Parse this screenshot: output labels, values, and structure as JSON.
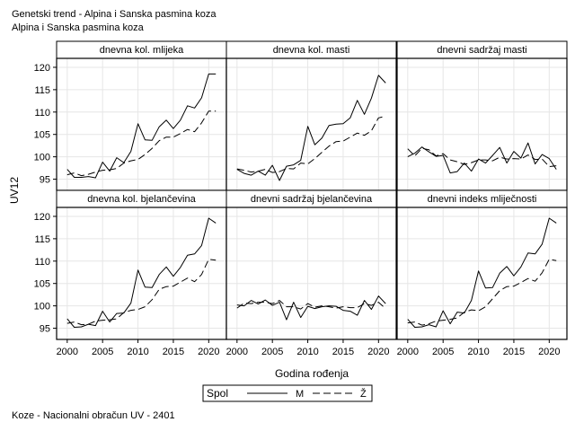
{
  "header": {
    "title": "Genetski trend - Alpina i Sanska pasmina koza",
    "subtitle": "Alpina i Sanska pasmina koza"
  },
  "footer": {
    "text": "Koze - Nacionalni obračun UV - 2401"
  },
  "legend": {
    "title": "Spol",
    "items": [
      {
        "label": "M",
        "style": "solid"
      },
      {
        "label": "Ž",
        "style": "dashed"
      }
    ]
  },
  "chart_data": {
    "type": "line",
    "xlabel": "Godina rođenja",
    "ylabel": "UV12",
    "xlim": [
      1998.5,
      2022.5
    ],
    "ylim": [
      92.5,
      122
    ],
    "xticks": [
      2000,
      2005,
      2010,
      2015,
      2020
    ],
    "yticks": [
      95,
      100,
      105,
      110,
      115,
      120
    ],
    "grid": true,
    "legend_position": "bottom",
    "x": [
      2000,
      2001,
      2002,
      2003,
      2004,
      2005,
      2006,
      2007,
      2008,
      2009,
      2010,
      2011,
      2012,
      2013,
      2014,
      2015,
      2016,
      2017,
      2018,
      2019,
      2020,
      2021
    ],
    "panels": [
      {
        "title": "dnevna kol. mlijeka",
        "series": [
          {
            "name": "M",
            "values": [
              97.2,
              95.4,
              95.4,
              95.6,
              95.3,
              98.8,
              96.8,
              99.8,
              98.7,
              101.2,
              107.4,
              103.8,
              103.7,
              106.7,
              108.2,
              106.3,
              108.2,
              111.4,
              110.9,
              113.2,
              118.5,
              118.5
            ]
          },
          {
            "name": "Ž",
            "values": [
              96.0,
              96.4,
              95.8,
              96.1,
              96.6,
              97.0,
              97.1,
              97.4,
              98.6,
              99.1,
              99.4,
              100.5,
              101.9,
              103.6,
              104.4,
              104.4,
              105.2,
              106.1,
              105.6,
              107.6,
              110.2,
              110.2
            ]
          }
        ]
      },
      {
        "title": "dnevna kol. masti",
        "series": [
          {
            "name": "M",
            "values": [
              97.2,
              96.3,
              95.9,
              96.8,
              95.9,
              98.1,
              94.7,
              97.9,
              98.2,
              99.2,
              106.8,
              102.7,
              104.2,
              107.0,
              107.3,
              107.4,
              108.7,
              112.6,
              109.5,
              113.1,
              118.2,
              116.5
            ]
          },
          {
            "name": "Ž",
            "values": [
              97.3,
              97.0,
              96.6,
              96.8,
              97.2,
              96.5,
              96.7,
              97.4,
              97.3,
              98.6,
              98.4,
              99.6,
              101.0,
              102.4,
              103.4,
              103.5,
              104.4,
              105.3,
              104.8,
              105.8,
              108.7,
              109.1
            ]
          }
        ]
      },
      {
        "title": "dnevni sadržaj masti",
        "series": [
          {
            "name": "M",
            "values": [
              100.0,
              100.8,
              102.2,
              101.1,
              100.1,
              100.3,
              96.4,
              96.7,
              98.6,
              96.8,
              99.5,
              98.6,
              100.3,
              102.1,
              98.6,
              101.2,
              99.7,
              103.1,
              98.4,
              100.5,
              99.6,
              97.2
            ]
          },
          {
            "name": "Ž",
            "values": [
              101.8,
              100.2,
              101.9,
              101.6,
              100.2,
              100.7,
              99.3,
              98.9,
              98.3,
              98.7,
              99.3,
              99.3,
              99.1,
              99.9,
              99.5,
              99.6,
              99.5,
              100.4,
              99.4,
              99.5,
              97.8,
              98.0
            ]
          }
        ]
      },
      {
        "title": "dnevna kol. bjelančevina",
        "series": [
          {
            "name": "M",
            "values": [
              97.1,
              95.2,
              95.3,
              95.9,
              95.6,
              98.8,
              96.4,
              98.3,
              98.4,
              100.6,
              108.0,
              104.2,
              104.1,
              107.0,
              108.7,
              106.6,
              108.6,
              111.3,
              111.6,
              113.5,
              119.6,
              118.5
            ]
          },
          {
            "name": "Ž",
            "values": [
              96.1,
              96.4,
              95.8,
              95.9,
              96.6,
              96.8,
              96.9,
              97.1,
              98.5,
              99.0,
              99.2,
              99.8,
              101.4,
              103.7,
              104.3,
              104.4,
              105.3,
              106.2,
              105.4,
              107.0,
              110.4,
              110.2
            ]
          }
        ]
      },
      {
        "title": "dnevni sadržaj bjelančevina",
        "series": [
          {
            "name": "M",
            "values": [
              100.2,
              100.0,
              101.2,
              100.4,
              101.3,
              100.1,
              100.8,
              96.9,
              100.8,
              97.4,
              99.9,
              99.4,
              99.8,
              100.0,
              99.9,
              99.0,
              98.8,
              97.9,
              101.2,
              99.2,
              102.2,
              100.5
            ]
          },
          {
            "name": "Ž",
            "values": [
              99.5,
              100.6,
              100.5,
              100.8,
              100.8,
              100.5,
              101.2,
              99.8,
              99.8,
              99.3,
              100.5,
              99.7,
              100.0,
              99.8,
              99.5,
              99.8,
              99.6,
              99.6,
              100.5,
              100.1,
              100.8,
              99.4
            ]
          }
        ]
      },
      {
        "title": "dnevni indeks mliječnosti",
        "series": [
          {
            "name": "M",
            "values": [
              97.0,
              95.2,
              95.3,
              95.8,
              95.3,
              98.9,
              96.0,
              98.6,
              98.4,
              101.2,
              107.8,
              104.0,
              104.1,
              107.3,
              108.8,
              106.7,
              108.7,
              111.8,
              111.6,
              113.8,
              119.6,
              118.5
            ]
          },
          {
            "name": "Ž",
            "values": [
              96.2,
              96.4,
              95.7,
              96.0,
              96.6,
              96.8,
              97.0,
              97.3,
              98.6,
              99.1,
              98.9,
              99.8,
              101.6,
              103.4,
              104.3,
              104.4,
              105.2,
              106.1,
              105.5,
              107.4,
              110.4,
              110.1
            ]
          }
        ]
      }
    ]
  }
}
